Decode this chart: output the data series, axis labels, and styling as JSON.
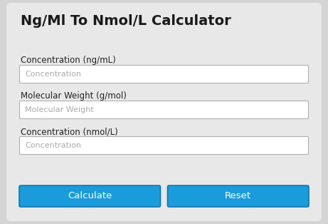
{
  "title": "Ng/Ml To Nmol/L Calculator",
  "title_fontsize": 14,
  "title_fontweight": "bold",
  "title_color": "#1a1a1a",
  "bg_outer": "#d4d4d4",
  "bg_card": "#e8e8e8",
  "field_bg": "#ffffff",
  "field_border": "#b0b0b0",
  "field_placeholder_color": "#aaaaaa",
  "label_color": "#222222",
  "label_fontsize": 8.5,
  "placeholder_fontsize": 8.0,
  "labels": [
    "Concentration (ng/mL)",
    "Molecular Weight (g/mol)",
    "Concentration (nmol/L)"
  ],
  "placeholders": [
    "Concentration",
    "Molecular Weight",
    "Concentration"
  ],
  "button_bg": "#1a9bdb",
  "button_border": "#1478aa",
  "button_text_color": "#ffffff",
  "button_labels": [
    "Calculate",
    "Reset"
  ],
  "button_fontsize": 9.5,
  "fig_w": 4.61,
  "fig_h": 3.14,
  "dpi": 100
}
